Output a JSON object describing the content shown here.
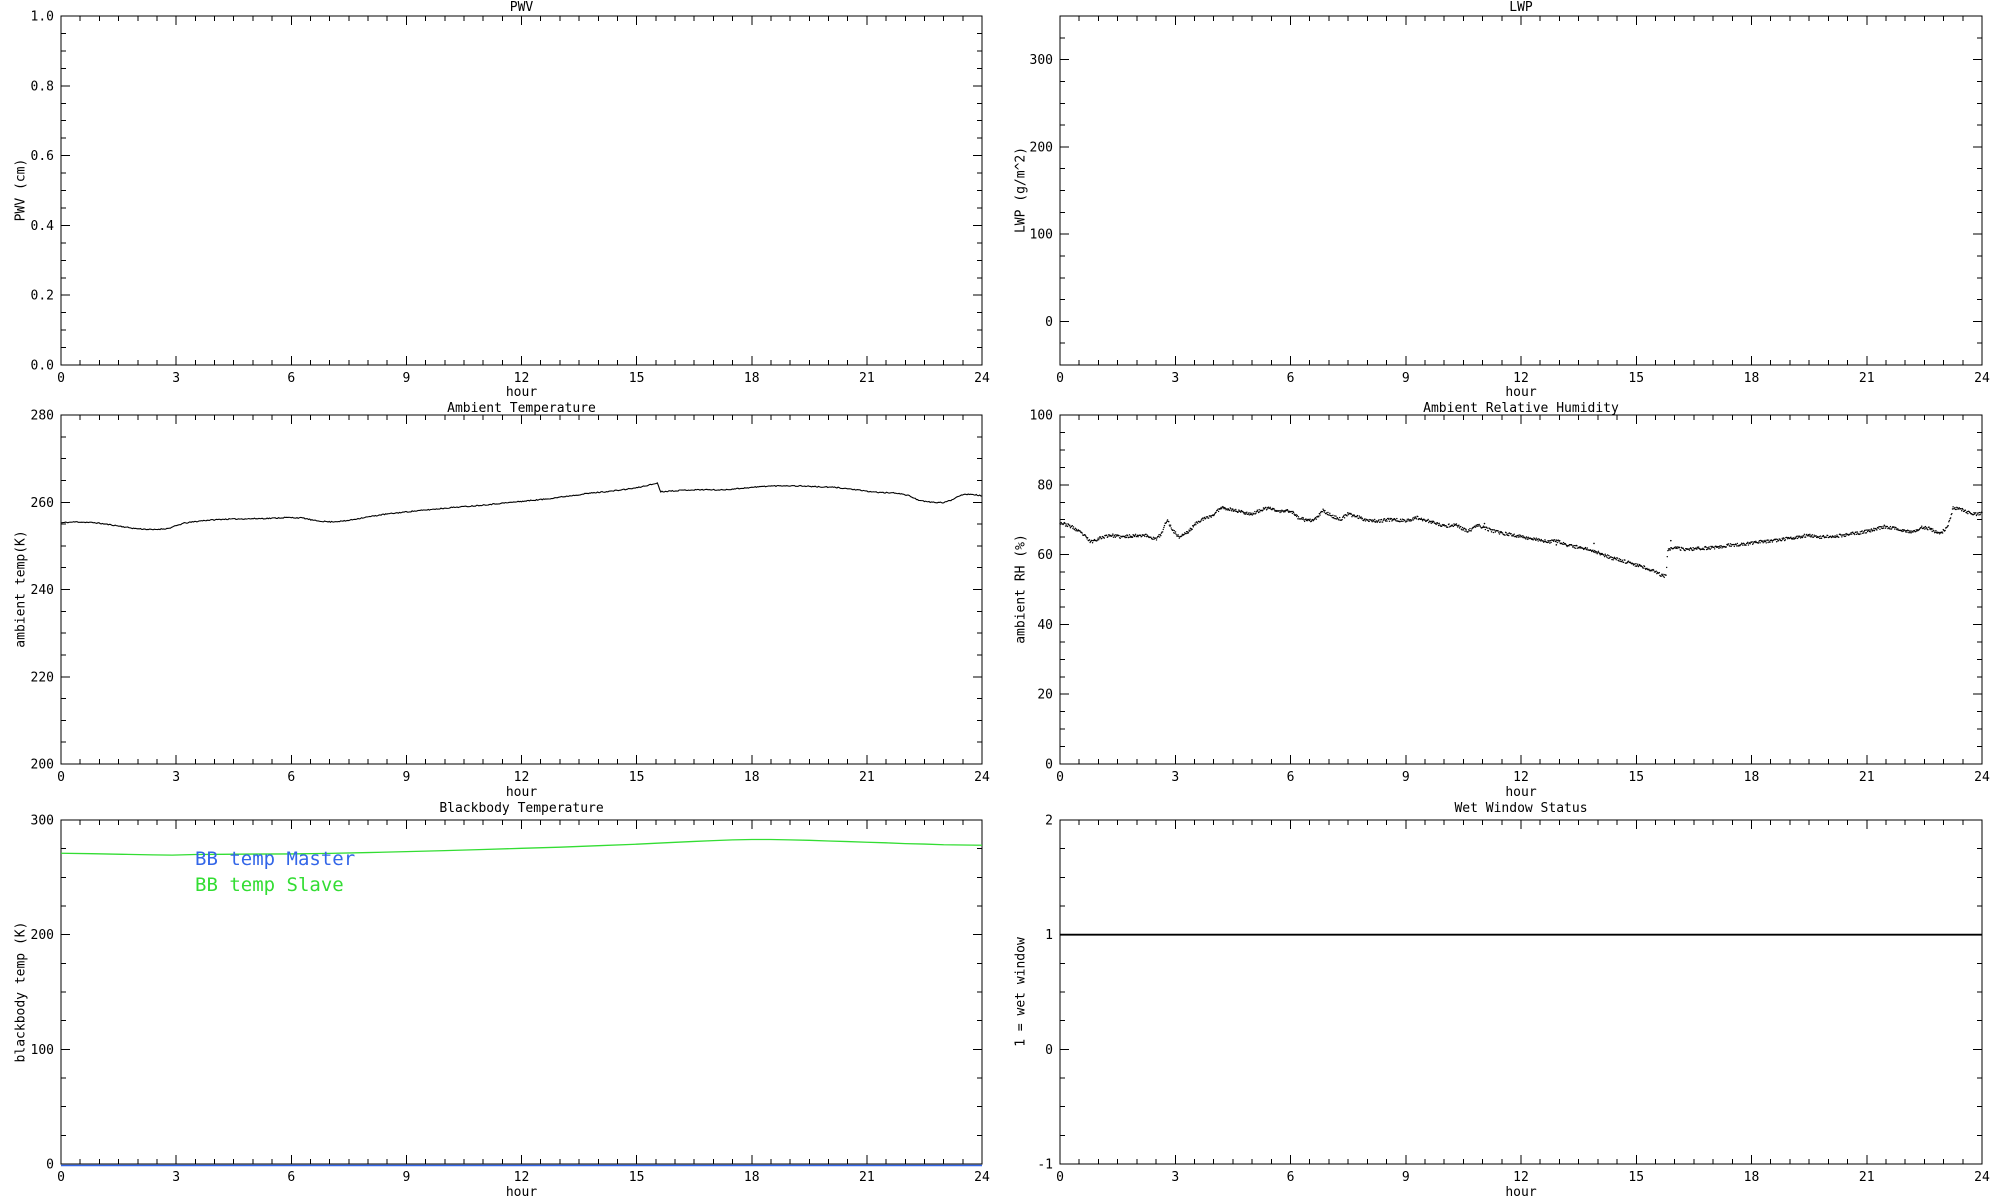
{
  "page": {
    "background": "#ffffff"
  },
  "colors": {
    "axis": "#000000",
    "bb_master_blue": "#3366e8",
    "bb_slave_green": "#33dd33"
  },
  "chart_data": [
    {
      "id": "pwv",
      "type": "line",
      "title": "PWV",
      "xlabel": "hour",
      "ylabel": "PWV (cm)",
      "xlim": [
        0,
        24
      ],
      "ylim": [
        0,
        1
      ],
      "xticks": [
        0,
        3,
        6,
        9,
        12,
        15,
        18,
        21,
        24
      ],
      "xtick_labels": [
        "0",
        "3",
        "6",
        "9",
        "12",
        "15",
        "18",
        "21",
        "24"
      ],
      "yticks": [
        0,
        0.2,
        0.4,
        0.6,
        0.8,
        1.0
      ],
      "ytick_labels": [
        "0.0",
        "0.2",
        "0.4",
        "0.6",
        "0.8",
        "1.0"
      ],
      "x_minor": 0.5,
      "y_minor": 0.05,
      "grid": false,
      "series": []
    },
    {
      "id": "lwp",
      "type": "line",
      "title": "LWP",
      "xlabel": "hour",
      "ylabel": "LWP (g/m^2)",
      "xlim": [
        0,
        24
      ],
      "ylim": [
        -50,
        350
      ],
      "xticks": [
        0,
        3,
        6,
        9,
        12,
        15,
        18,
        21,
        24
      ],
      "xtick_labels": [
        "0",
        "3",
        "6",
        "9",
        "12",
        "15",
        "18",
        "21",
        "24"
      ],
      "yticks": [
        0,
        100,
        200,
        300
      ],
      "ytick_labels": [
        "0",
        "100",
        "200",
        "300"
      ],
      "x_minor": 0.5,
      "y_minor": 25,
      "grid": false,
      "series": []
    },
    {
      "id": "ambient_temperature",
      "type": "line",
      "title": "Ambient Temperature",
      "xlabel": "hour",
      "ylabel": "ambient temp(K)",
      "xlim": [
        0,
        24
      ],
      "ylim": [
        200,
        280
      ],
      "xticks": [
        0,
        3,
        6,
        9,
        12,
        15,
        18,
        21,
        24
      ],
      "xtick_labels": [
        "0",
        "3",
        "6",
        "9",
        "12",
        "15",
        "18",
        "21",
        "24"
      ],
      "yticks": [
        200,
        220,
        240,
        260,
        280
      ],
      "ytick_labels": [
        "200",
        "220",
        "240",
        "260",
        "280"
      ],
      "x_minor": 0.5,
      "y_minor": 5,
      "grid": false,
      "series": [
        {
          "name": "ambient temperature",
          "style": "noisy-line",
          "color": "#000000",
          "lw": 1.1,
          "seed": 11,
          "dt": 0.03,
          "jitter": 0.12,
          "points": [
            [
              0,
              255.3
            ],
            [
              0.4,
              255.5
            ],
            [
              0.9,
              255.3
            ],
            [
              1.4,
              254.7
            ],
            [
              1.9,
              254.0
            ],
            [
              2.4,
              253.7
            ],
            [
              2.8,
              254.0
            ],
            [
              3.2,
              255.2
            ],
            [
              3.7,
              255.8
            ],
            [
              4.2,
              256.1
            ],
            [
              4.8,
              256.2
            ],
            [
              5.4,
              256.3
            ],
            [
              5.9,
              256.5
            ],
            [
              6.3,
              256.4
            ],
            [
              6.6,
              255.8
            ],
            [
              7.0,
              255.5
            ],
            [
              7.4,
              255.7
            ],
            [
              7.9,
              256.5
            ],
            [
              8.4,
              257.2
            ],
            [
              9.0,
              257.8
            ],
            [
              9.6,
              258.3
            ],
            [
              10.2,
              258.8
            ],
            [
              10.8,
              259.2
            ],
            [
              11.4,
              259.7
            ],
            [
              12.0,
              260.2
            ],
            [
              12.6,
              260.7
            ],
            [
              13.2,
              261.4
            ],
            [
              13.8,
              262.1
            ],
            [
              14.4,
              262.6
            ],
            [
              15.0,
              263.3
            ],
            [
              15.3,
              263.9
            ],
            [
              15.55,
              264.4
            ],
            [
              15.62,
              262.4
            ],
            [
              15.9,
              262.6
            ],
            [
              16.3,
              262.8
            ],
            [
              16.8,
              262.9
            ],
            [
              17.2,
              262.8
            ],
            [
              17.6,
              263.1
            ],
            [
              18.0,
              263.4
            ],
            [
              18.4,
              263.7
            ],
            [
              18.9,
              263.8
            ],
            [
              19.4,
              263.7
            ],
            [
              19.8,
              263.5
            ],
            [
              20.2,
              263.4
            ],
            [
              20.6,
              263.0
            ],
            [
              21.0,
              262.5
            ],
            [
              21.4,
              262.2
            ],
            [
              21.8,
              262.1
            ],
            [
              22.1,
              261.5
            ],
            [
              22.4,
              260.3
            ],
            [
              22.7,
              260.0
            ],
            [
              23.0,
              259.9
            ],
            [
              23.2,
              260.5
            ],
            [
              23.45,
              261.7
            ],
            [
              23.7,
              261.9
            ],
            [
              23.9,
              261.6
            ],
            [
              24,
              261.5
            ]
          ]
        }
      ]
    },
    {
      "id": "ambient_relative_humidity",
      "type": "scatter",
      "title": "Ambient Relative Humidity",
      "xlabel": "hour",
      "ylabel": "ambient RH (%)",
      "xlim": [
        0,
        24
      ],
      "ylim": [
        0,
        100
      ],
      "xticks": [
        0,
        3,
        6,
        9,
        12,
        15,
        18,
        21,
        24
      ],
      "xtick_labels": [
        "0",
        "3",
        "6",
        "9",
        "12",
        "15",
        "18",
        "21",
        "24"
      ],
      "yticks": [
        0,
        20,
        40,
        60,
        80,
        100
      ],
      "ytick_labels": [
        "0",
        "20",
        "40",
        "60",
        "80",
        "100"
      ],
      "x_minor": 0.5,
      "y_minor": 5,
      "grid": false,
      "series": [
        {
          "name": "ambient RH",
          "style": "dots",
          "color": "#000000",
          "r": 0.7,
          "seed": 23,
          "dt": 0.016,
          "jitter": 0.45,
          "points": [
            [
              0,
              69.2
            ],
            [
              0.3,
              68.0
            ],
            [
              0.6,
              65.8
            ],
            [
              0.8,
              63.6
            ],
            [
              1.0,
              64.6
            ],
            [
              1.3,
              65.6
            ],
            [
              1.6,
              65.0
            ],
            [
              1.9,
              65.4
            ],
            [
              2.2,
              65.6
            ],
            [
              2.5,
              64.4
            ],
            [
              2.65,
              66.0
            ],
            [
              2.78,
              70.0
            ],
            [
              2.95,
              66.8
            ],
            [
              3.1,
              65.0
            ],
            [
              3.35,
              66.6
            ],
            [
              3.6,
              69.6
            ],
            [
              3.8,
              70.4
            ],
            [
              4.0,
              71.4
            ],
            [
              4.2,
              73.6
            ],
            [
              4.45,
              72.9
            ],
            [
              4.7,
              72.3
            ],
            [
              5.0,
              71.6
            ],
            [
              5.2,
              72.6
            ],
            [
              5.45,
              73.4
            ],
            [
              5.7,
              72.3
            ],
            [
              6.0,
              72.6
            ],
            [
              6.2,
              70.6
            ],
            [
              6.45,
              69.6
            ],
            [
              6.65,
              70.1
            ],
            [
              6.85,
              72.6
            ],
            [
              7.1,
              70.9
            ],
            [
              7.3,
              70.1
            ],
            [
              7.5,
              71.6
            ],
            [
              7.7,
              71.0
            ],
            [
              7.95,
              70.0
            ],
            [
              8.3,
              69.6
            ],
            [
              8.65,
              70.1
            ],
            [
              9.0,
              69.6
            ],
            [
              9.3,
              70.6
            ],
            [
              9.65,
              69.4
            ],
            [
              10.0,
              68.1
            ],
            [
              10.3,
              68.6
            ],
            [
              10.6,
              66.6
            ],
            [
              10.9,
              68.4
            ],
            [
              11.2,
              67.0
            ],
            [
              11.5,
              66.1
            ],
            [
              11.8,
              65.6
            ],
            [
              12.1,
              64.9
            ],
            [
              12.4,
              64.4
            ],
            [
              12.7,
              63.6
            ],
            [
              12.95,
              63.9
            ],
            [
              13.2,
              62.6
            ],
            [
              13.5,
              62.1
            ],
            [
              13.8,
              61.4
            ],
            [
              14.1,
              60.2
            ],
            [
              14.35,
              59.0
            ],
            [
              14.6,
              58.4
            ],
            [
              14.9,
              57.4
            ],
            [
              15.2,
              56.4
            ],
            [
              15.5,
              55.0
            ],
            [
              15.68,
              54.0
            ],
            [
              15.78,
              53.8
            ],
            [
              15.82,
              61.4
            ],
            [
              16.0,
              61.9
            ],
            [
              16.3,
              61.4
            ],
            [
              16.6,
              61.7
            ],
            [
              17.0,
              62.0
            ],
            [
              17.4,
              62.6
            ],
            [
              17.8,
              63.0
            ],
            [
              18.2,
              63.6
            ],
            [
              18.6,
              64.0
            ],
            [
              19.0,
              64.6
            ],
            [
              19.25,
              65.1
            ],
            [
              19.5,
              65.6
            ],
            [
              19.75,
              65.0
            ],
            [
              20.0,
              65.2
            ],
            [
              20.3,
              65.4
            ],
            [
              20.6,
              65.9
            ],
            [
              20.9,
              66.4
            ],
            [
              21.2,
              67.2
            ],
            [
              21.45,
              68.0
            ],
            [
              21.7,
              67.6
            ],
            [
              21.95,
              66.9
            ],
            [
              22.2,
              66.6
            ],
            [
              22.45,
              67.9
            ],
            [
              22.65,
              67.4
            ],
            [
              22.9,
              65.9
            ],
            [
              23.1,
              67.8
            ],
            [
              23.25,
              73.4
            ],
            [
              23.45,
              72.9
            ],
            [
              23.65,
              72.1
            ],
            [
              23.85,
              71.6
            ],
            [
              24,
              71.9
            ]
          ]
        },
        {
          "name": "RH outliers",
          "style": "dots-raw",
          "color": "#000000",
          "r": 0.8,
          "points": [
            [
              11.05,
              68.9
            ],
            [
              12.92,
              62.8
            ],
            [
              13.9,
              63.2
            ],
            [
              15.9,
              64.0
            ]
          ]
        }
      ]
    },
    {
      "id": "blackbody_temperature",
      "type": "line",
      "title": "Blackbody Temperature",
      "xlabel": "hour",
      "ylabel": "blackbody temp (K)",
      "xlim": [
        0,
        24
      ],
      "ylim": [
        0,
        300
      ],
      "xticks": [
        0,
        3,
        6,
        9,
        12,
        15,
        18,
        21,
        24
      ],
      "xtick_labels": [
        "0",
        "3",
        "6",
        "9",
        "12",
        "15",
        "18",
        "21",
        "24"
      ],
      "yticks": [
        0,
        100,
        200,
        300
      ],
      "ytick_labels": [
        "0",
        "100",
        "200",
        "300"
      ],
      "x_minor": 0.5,
      "y_minor": 25,
      "grid": false,
      "legend": [
        {
          "label": "BB temp Master",
          "color": "#3366e8"
        },
        {
          "label": "BB temp Slave",
          "color": "#33dd33"
        }
      ],
      "series": [
        {
          "name": "BB temp Slave",
          "style": "line",
          "color": "#33dd33",
          "lw": 1.3,
          "points": [
            [
              0,
              271.0
            ],
            [
              0.8,
              270.6
            ],
            [
              1.6,
              270.1
            ],
            [
              2.4,
              269.6
            ],
            [
              2.9,
              269.4
            ],
            [
              3.5,
              269.9
            ],
            [
              4.2,
              270.1
            ],
            [
              5.0,
              270.3
            ],
            [
              6.0,
              270.4
            ],
            [
              7.0,
              270.9
            ],
            [
              8.0,
              271.6
            ],
            [
              9.0,
              272.4
            ],
            [
              10.0,
              273.3
            ],
            [
              11.0,
              274.3
            ],
            [
              12.0,
              275.3
            ],
            [
              13.0,
              276.3
            ],
            [
              14.0,
              277.6
            ],
            [
              15.0,
              278.9
            ],
            [
              15.8,
              280.2
            ],
            [
              16.5,
              281.3
            ],
            [
              17.0,
              282.0
            ],
            [
              17.5,
              282.7
            ],
            [
              18.0,
              283.0
            ],
            [
              18.5,
              283.0
            ],
            [
              19.0,
              282.7
            ],
            [
              19.5,
              282.3
            ],
            [
              20.0,
              281.7
            ],
            [
              20.5,
              281.2
            ],
            [
              21.0,
              280.6
            ],
            [
              21.5,
              280.1
            ],
            [
              22.0,
              279.4
            ],
            [
              22.5,
              279.0
            ],
            [
              23.0,
              278.4
            ],
            [
              23.5,
              278.2
            ],
            [
              24,
              278.0
            ]
          ]
        },
        {
          "name": "BB temp Master",
          "style": "line",
          "color": "#3366e8",
          "lw": 1.6,
          "offset_y": 1.5,
          "points": [
            [
              0,
              0
            ],
            [
              24,
              0
            ]
          ]
        }
      ]
    },
    {
      "id": "wet_window_status",
      "type": "line",
      "title": "Wet Window Status",
      "xlabel": "hour",
      "ylabel": "1 = wet window",
      "xlim": [
        0,
        24
      ],
      "ylim": [
        -1,
        2
      ],
      "xticks": [
        0,
        3,
        6,
        9,
        12,
        15,
        18,
        21,
        24
      ],
      "xtick_labels": [
        "0",
        "3",
        "6",
        "9",
        "12",
        "15",
        "18",
        "21",
        "24"
      ],
      "yticks": [
        -1,
        0,
        1,
        2
      ],
      "ytick_labels": [
        "-1",
        "0",
        "1",
        "2"
      ],
      "x_minor": 0.5,
      "y_minor": 0.25,
      "grid": false,
      "series": [
        {
          "name": "wet window status",
          "style": "line",
          "color": "#000000",
          "lw": 1.8,
          "points": [
            [
              0,
              1
            ],
            [
              24,
              1
            ]
          ]
        }
      ]
    }
  ]
}
